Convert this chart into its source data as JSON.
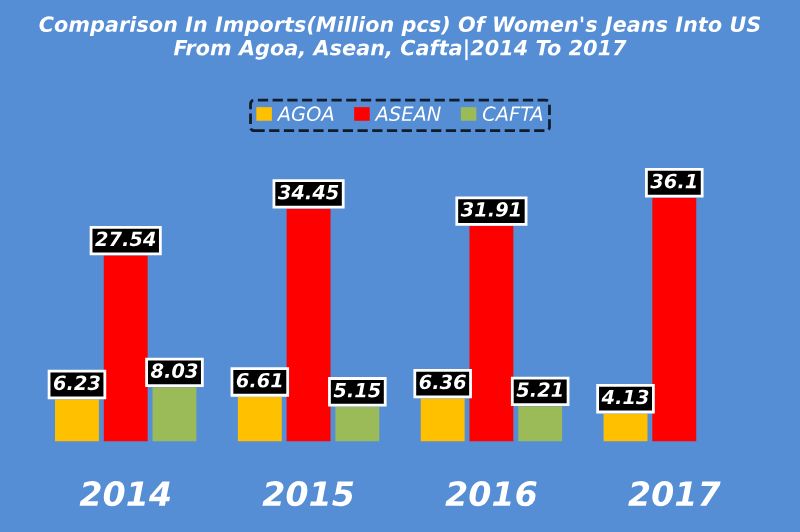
{
  "chart_data": {
    "type": "bar",
    "title": "Comparison In Imports(Million pcs) Of Women's Jeans Into US\nFrom Agoa, Asean, Cafta|2014 To 2017",
    "categories": [
      "2014",
      "2015",
      "2016",
      "2017"
    ],
    "series": [
      {
        "name": "AGOA",
        "color": "#ffc000",
        "values": [
          6.23,
          6.61,
          6.36,
          4.13
        ]
      },
      {
        "name": "ASEAN",
        "color": "#ff0000",
        "values": [
          27.54,
          34.45,
          31.91,
          36.1
        ]
      },
      {
        "name": "CAFTA",
        "color": "#9bbb59",
        "values": [
          8.03,
          5.15,
          5.21,
          null
        ]
      }
    ],
    "data_labels": true,
    "legend": "top",
    "grid": false
  }
}
